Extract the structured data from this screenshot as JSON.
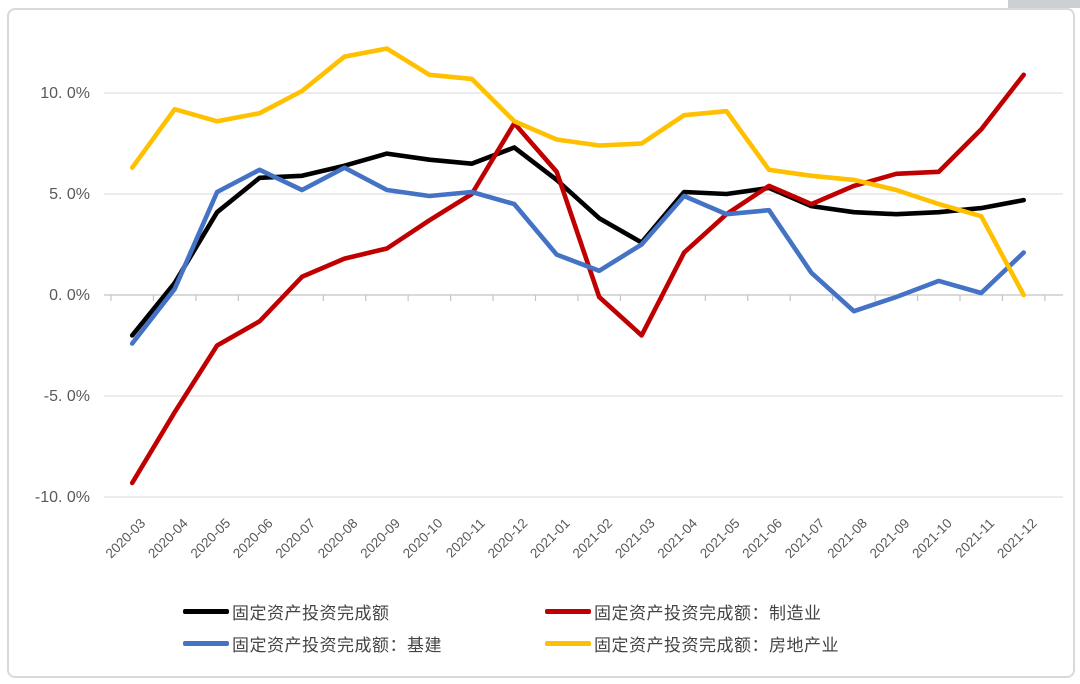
{
  "chart_data": {
    "type": "line",
    "title": "",
    "xlabel": "",
    "ylabel": "",
    "categories": [
      "2020-03",
      "2020-04",
      "2020-05",
      "2020-06",
      "2020-07",
      "2020-08",
      "2020-09",
      "2020-10",
      "2020-11",
      "2020-12",
      "2021-01",
      "2021-02",
      "2021-03",
      "2021-04",
      "2021-05",
      "2021-06",
      "2021-07",
      "2021-08",
      "2021-09",
      "2021-10",
      "2021-11",
      "2021-12"
    ],
    "series": [
      {
        "name": "固定资产投资完成额",
        "color": "#000000",
        "values": [
          -2.0,
          0.6,
          4.1,
          5.8,
          5.9,
          6.4,
          7.0,
          6.7,
          6.5,
          7.3,
          5.7,
          3.8,
          2.6,
          5.1,
          5.0,
          5.3,
          4.4,
          4.1,
          4.0,
          4.1,
          4.3,
          4.7
        ]
      },
      {
        "name": "固定资产投资完成额：制造业",
        "color": "#c00000",
        "values": [
          -9.3,
          -5.8,
          -2.5,
          -1.3,
          0.9,
          1.8,
          2.3,
          3.7,
          5.0,
          8.5,
          6.1,
          -0.1,
          -2.0,
          2.1,
          4.0,
          5.4,
          4.5,
          5.4,
          6.0,
          6.1,
          8.2,
          10.9
        ]
      },
      {
        "name": "固定资产投资完成额：基建",
        "color": "#4472c4",
        "values": [
          -2.4,
          0.3,
          5.1,
          6.2,
          5.2,
          6.3,
          5.2,
          4.9,
          5.1,
          4.5,
          2.0,
          1.2,
          2.5,
          4.9,
          4.0,
          4.2,
          1.1,
          -0.8,
          -0.1,
          0.7,
          0.1,
          2.1
        ]
      },
      {
        "name": "固定资产投资完成额：房地产业",
        "color": "#ffc000",
        "values": [
          6.3,
          9.2,
          8.6,
          9.0,
          10.1,
          11.8,
          12.2,
          10.9,
          10.7,
          8.6,
          7.7,
          7.4,
          7.5,
          8.9,
          9.1,
          6.2,
          5.9,
          5.7,
          5.2,
          4.5,
          3.9,
          0.0
        ]
      }
    ],
    "y_axis": {
      "tick_values": [
        10,
        5,
        0,
        -5,
        -10
      ],
      "tick_labels": [
        "10. 0%",
        "5. 0%",
        "0. 0%",
        "-5. 0%",
        "-10. 0%"
      ],
      "ylim": [
        -10.6,
        12.9
      ]
    },
    "grid": "horizontal",
    "legend_position": "bottom"
  },
  "legend": {
    "rows": 2,
    "columns": 2
  },
  "colors": {
    "gridline": "#dadada",
    "zero_axis": "#c4c4c4",
    "axis_text": "#595959",
    "frame_border": "#d9d9d9"
  }
}
